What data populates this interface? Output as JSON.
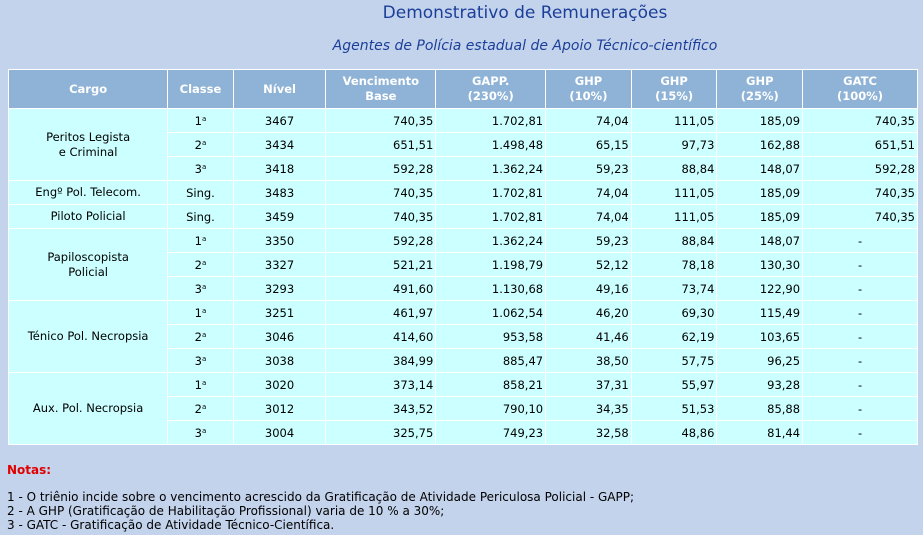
{
  "title": "Demonstrativo de Remunerações",
  "subtitle": "Agentes de Polícia estadual de Apoio Técnico-científico",
  "table": {
    "headers": [
      {
        "line1": "Cargo",
        "line2": ""
      },
      {
        "line1": "Classe",
        "line2": ""
      },
      {
        "line1": "Nível",
        "line2": ""
      },
      {
        "line1": "Vencimento",
        "line2": "Base"
      },
      {
        "line1": "GAPP.",
        "line2": "(230%)"
      },
      {
        "line1": "GHP",
        "line2": "(10%)"
      },
      {
        "line1": "GHP",
        "line2": "(15%)"
      },
      {
        "line1": "GHP",
        "line2": "(25%)"
      },
      {
        "line1": "GATC",
        "line2": "(100%)"
      }
    ],
    "groups": [
      {
        "cargo": [
          "Peritos Legista",
          "e Criminal"
        ],
        "rows": [
          {
            "classe": "1",
            "sup": "a",
            "nivel": "3467",
            "base": "740,35",
            "gapp": "1.702,81",
            "ghp10": "74,04",
            "ghp15": "111,05",
            "ghp25": "185,09",
            "gatc": "740,35"
          },
          {
            "classe": "2",
            "sup": "a",
            "nivel": "3434",
            "base": "651,51",
            "gapp": "1.498,48",
            "ghp10": "65,15",
            "ghp15": "97,73",
            "ghp25": "162,88",
            "gatc": "651,51"
          },
          {
            "classe": "3",
            "sup": "a",
            "nivel": "3418",
            "base": "592,28",
            "gapp": "1.362,24",
            "ghp10": "59,23",
            "ghp15": "88,84",
            "ghp25": "148,07",
            "gatc": "592,28"
          }
        ]
      },
      {
        "cargo": [
          "Engº Pol. Telecom."
        ],
        "rows": [
          {
            "classe": "Sing.",
            "sup": "",
            "nivel": "3483",
            "base": "740,35",
            "gapp": "1.702,81",
            "ghp10": "74,04",
            "ghp15": "111,05",
            "ghp25": "185,09",
            "gatc": "740,35"
          }
        ]
      },
      {
        "cargo": [
          "Piloto Policial"
        ],
        "rows": [
          {
            "classe": "Sing.",
            "sup": "",
            "nivel": "3459",
            "base": "740,35",
            "gapp": "1.702,81",
            "ghp10": "74,04",
            "ghp15": "111,05",
            "ghp25": "185,09",
            "gatc": "740,35"
          }
        ]
      },
      {
        "cargo": [
          "Papiloscopista",
          "Policial"
        ],
        "rows": [
          {
            "classe": "1",
            "sup": "a",
            "nivel": "3350",
            "base": "592,28",
            "gapp": "1.362,24",
            "ghp10": "59,23",
            "ghp15": "88,84",
            "ghp25": "148,07",
            "gatc": "-"
          },
          {
            "classe": "2",
            "sup": "a",
            "nivel": "3327",
            "base": "521,21",
            "gapp": "1.198,79",
            "ghp10": "52,12",
            "ghp15": "78,18",
            "ghp25": "130,30",
            "gatc": "-"
          },
          {
            "classe": "3",
            "sup": "a",
            "nivel": "3293",
            "base": "491,60",
            "gapp": "1.130,68",
            "ghp10": "49,16",
            "ghp15": "73,74",
            "ghp25": "122,90",
            "gatc": "-"
          }
        ]
      },
      {
        "cargo": [
          "Ténico Pol. Necropsia"
        ],
        "rows": [
          {
            "classe": "1",
            "sup": "a",
            "nivel": "3251",
            "base": "461,97",
            "gapp": "1.062,54",
            "ghp10": "46,20",
            "ghp15": "69,30",
            "ghp25": "115,49",
            "gatc": "-"
          },
          {
            "classe": "2",
            "sup": "a",
            "nivel": "3046",
            "base": "414,60",
            "gapp": "953,58",
            "ghp10": "41,46",
            "ghp15": "62,19",
            "ghp25": "103,65",
            "gatc": "-"
          },
          {
            "classe": "3",
            "sup": "a",
            "nivel": "3038",
            "base": "384,99",
            "gapp": "885,47",
            "ghp10": "38,50",
            "ghp15": "57,75",
            "ghp25": "96,25",
            "gatc": "-"
          }
        ]
      },
      {
        "cargo": [
          "Aux. Pol. Necropsia"
        ],
        "rows": [
          {
            "classe": "1",
            "sup": "a",
            "nivel": "3020",
            "base": "373,14",
            "gapp": "858,21",
            "ghp10": "37,31",
            "ghp15": "55,97",
            "ghp25": "93,28",
            "gatc": "-"
          },
          {
            "classe": "2",
            "sup": "a",
            "nivel": "3012",
            "base": "343,52",
            "gapp": "790,10",
            "ghp10": "34,35",
            "ghp15": "51,53",
            "ghp25": "85,88",
            "gatc": "-"
          },
          {
            "classe": "3",
            "sup": "a",
            "nivel": "3004",
            "base": "325,75",
            "gapp": "749,23",
            "ghp10": "32,58",
            "ghp15": "48,86",
            "ghp25": "81,44",
            "gatc": "-"
          }
        ]
      }
    ]
  },
  "notes": {
    "title": "Notas:",
    "items": [
      "1 - O triênio incide sobre o vencimento acrescido da Gratificação de Atividade Periculosa Policial - GAPP;",
      "2 - A GHP (Gratificação de Habilitação Profissional) varia de 10 % a 30%;",
      "3 - GATC - Gratificação de Atividade Técnico-Científica."
    ]
  },
  "colors": {
    "background": "#c4d3ec",
    "header_bg": "#8fb3d6",
    "cell_bg": "#ccffff",
    "title": "#1b3f99",
    "notes_title": "#e00000"
  }
}
